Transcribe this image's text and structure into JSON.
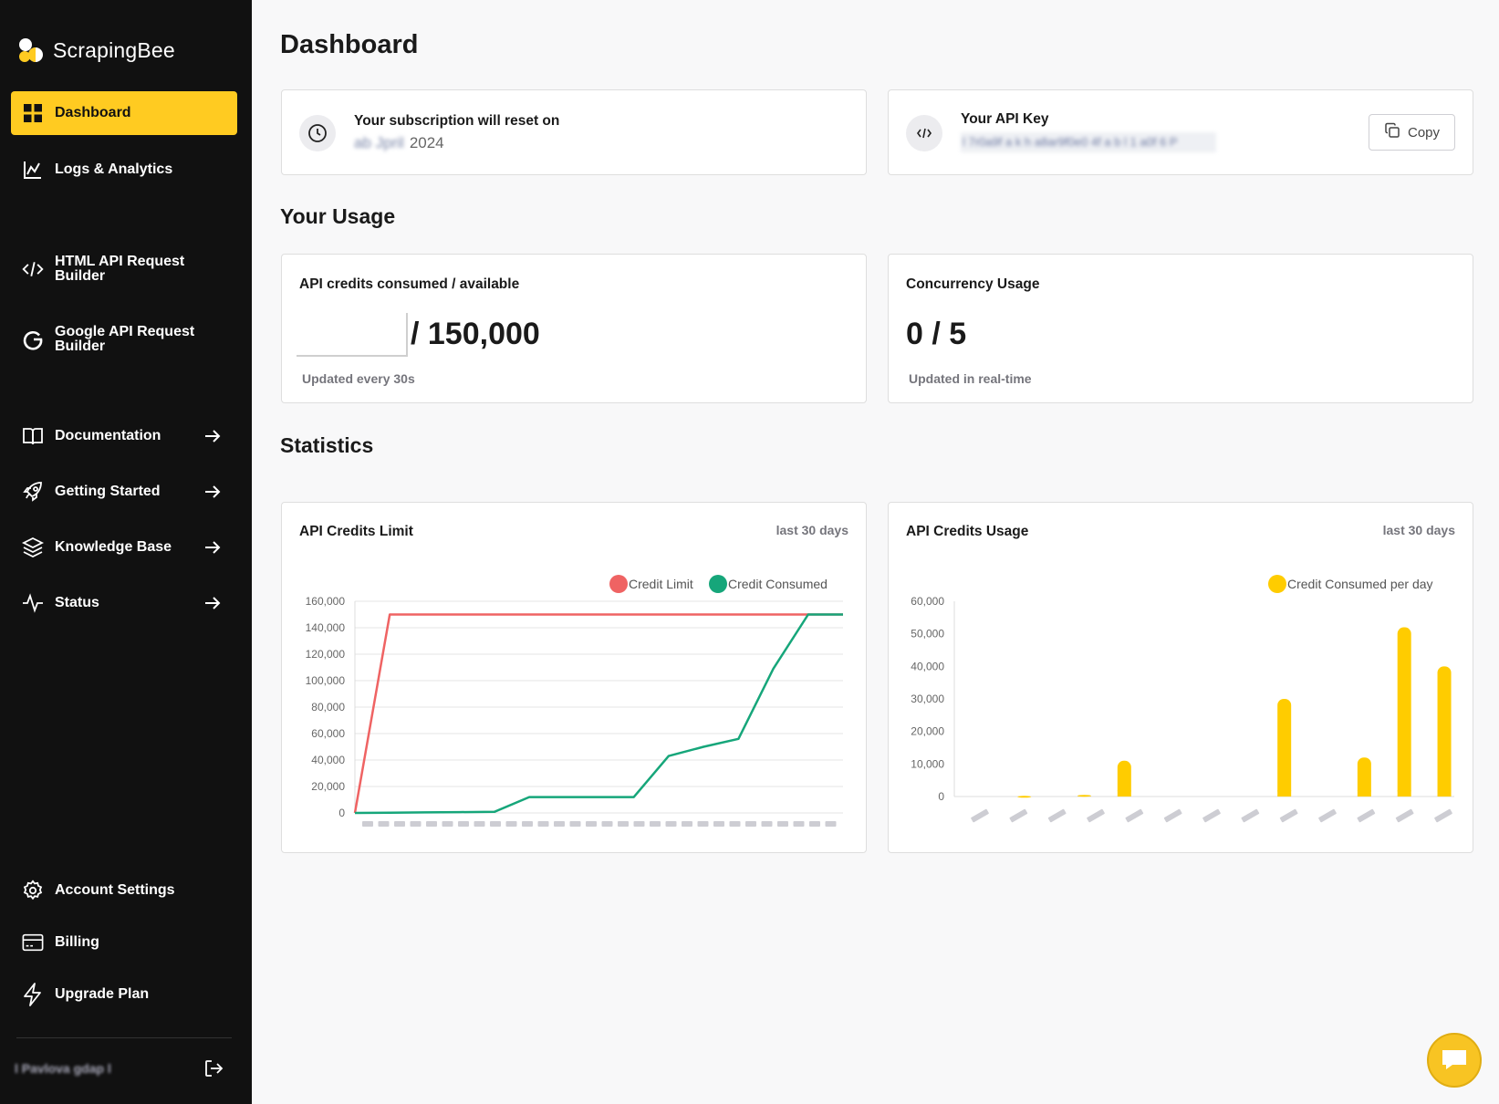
{
  "brand": {
    "name": "ScrapingBee"
  },
  "sidebar": {
    "items": [
      {
        "label": "Dashboard",
        "icon": "grid-icon"
      },
      {
        "label": "Logs & Analytics",
        "icon": "line-chart-icon"
      },
      {
        "label": "HTML API Request Builder",
        "icon": "code-icon"
      },
      {
        "label": "Google API Request Builder",
        "icon": "google-icon"
      },
      {
        "label": "Documentation",
        "icon": "book-icon"
      },
      {
        "label": "Getting Started",
        "icon": "rocket-icon"
      },
      {
        "label": "Knowledge Base",
        "icon": "layers-icon"
      },
      {
        "label": "Status",
        "icon": "activity-icon"
      },
      {
        "label": "Account Settings",
        "icon": "gear-icon"
      },
      {
        "label": "Billing",
        "icon": "credit-card-icon"
      },
      {
        "label": "Upgrade Plan",
        "icon": "lightning-icon"
      }
    ],
    "user": {
      "name": "l Pavlova gdap l"
    }
  },
  "main": {
    "title": "Dashboard",
    "subscription": {
      "label": "Your subscription will reset on",
      "date_hidden": "ab Jpril",
      "year": "2024"
    },
    "api_key": {
      "label": "Your API Key",
      "value_hidden": "l 7r0a9f  a k h  a8ar9f0e0 4f a b l 1 a0f 6 P",
      "copy_label": "Copy"
    },
    "usage_title": "Your Usage",
    "credits": {
      "label": "API credits consumed / available",
      "available": "/ 150,000",
      "note": "Updated every 30s"
    },
    "concurrency": {
      "label": "Concurrency Usage",
      "value": "0 / 5",
      "note": "Updated in real-time"
    },
    "statistics_title": "Statistics",
    "chart_limit": {
      "title": "API Credits Limit",
      "range": "last 30 days"
    },
    "chart_usage": {
      "title": "API Credits Usage",
      "range": "last 30 days"
    }
  },
  "colors": {
    "accent": "#ffcb21",
    "sidebar_bg": "#111111",
    "credit_limit": "#ef6363",
    "credit_consumed": "#16a67a",
    "usage_bar": "#ffcc00"
  },
  "chart_data": [
    {
      "type": "line",
      "title": "API Credits Limit",
      "ylim": [
        0,
        160000
      ],
      "yticks": [
        "0",
        "20,000",
        "40,000",
        "60,000",
        "80,000",
        "100,000",
        "120,000",
        "140,000",
        "160,000"
      ],
      "legend": "top-right",
      "grid": true,
      "series": [
        {
          "name": "Credit Limit",
          "color": "#ef6363",
          "values": [
            0,
            150000,
            150000,
            150000,
            150000,
            150000,
            150000,
            150000,
            150000,
            150000,
            150000,
            150000,
            150000,
            150000,
            150000
          ]
        },
        {
          "name": "Credit Consumed",
          "color": "#16a67a",
          "values": [
            0,
            200,
            400,
            600,
            800,
            12000,
            12000,
            12000,
            12000,
            43000,
            50000,
            56000,
            109000,
            150000,
            150000
          ]
        }
      ]
    },
    {
      "type": "bar",
      "title": "API Credits Usage",
      "ylim": [
        0,
        60000
      ],
      "yticks": [
        "0",
        "10,000",
        "20,000",
        "30,000",
        "40,000",
        "50,000",
        "60,000"
      ],
      "legend": "top-right",
      "grid": false,
      "series": [
        {
          "name": "Credit Consumed per day",
          "color": "#ffcc00",
          "values": [
            0,
            0,
            0,
            200,
            0,
            0,
            500,
            0,
            11000,
            0,
            0,
            0,
            0,
            0,
            0,
            0,
            30000,
            0,
            0,
            0,
            12000,
            0,
            52000,
            0,
            40000
          ]
        }
      ]
    }
  ]
}
